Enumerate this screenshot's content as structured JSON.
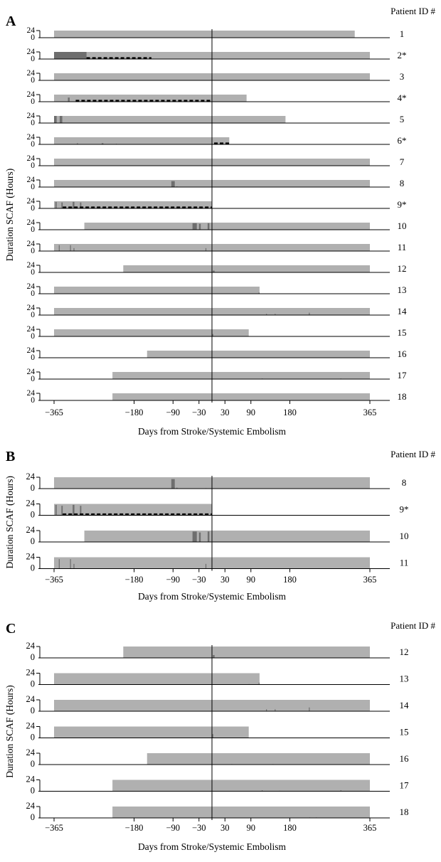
{
  "colors": {
    "monitoring": "#b0b0b0",
    "scaf": "#6e6e6e",
    "axis": "#000000",
    "dash": "#000000"
  },
  "chart_data": [
    {
      "panel_label": "A",
      "type": "bar",
      "header": "Patient ID #",
      "ylabel": "Duration SCAF (Hours)",
      "xlabel": "Days from Stroke/Systemic Embolism",
      "x_ticks": [
        "-365",
        "-180",
        "-90",
        "-30",
        "30",
        "90",
        "180",
        "365"
      ],
      "x_tick_values": [
        -365,
        -180,
        -90,
        -30,
        30,
        90,
        180,
        365
      ],
      "y_ticks": [
        "24",
        "0"
      ],
      "y_range": [
        0,
        24
      ],
      "x_range": [
        -365,
        365
      ],
      "event_line_x": 0,
      "rows": [
        {
          "id": "1",
          "monitor": [
            -365,
            330
          ],
          "events": [
            [
              -240,
              -238,
              1
            ],
            [
              -215,
              -213,
              1
            ],
            [
              -205,
              -203,
              1
            ],
            [
              -195,
              -193,
              1
            ],
            [
              -175,
              -173,
              1
            ],
            [
              -165,
              -163,
              1
            ]
          ],
          "dashed": null
        },
        {
          "id": "2*",
          "monitor": [
            -365,
            365
          ],
          "events": [
            [
              -365,
              -290,
              24
            ]
          ],
          "dashed": [
            -290,
            -140
          ]
        },
        {
          "id": "3",
          "monitor": [
            -365,
            365
          ],
          "events": [
            [
              -358,
              -356,
              1
            ],
            [
              -352,
              -350,
              1
            ],
            [
              -345,
              -343,
              1
            ]
          ],
          "dashed": null
        },
        {
          "id": "4*",
          "monitor": [
            -365,
            80
          ],
          "events": [
            [
              -333,
              -329,
              14
            ]
          ],
          "dashed": [
            -315,
            -2
          ]
        },
        {
          "id": "5",
          "monitor": [
            -365,
            170
          ],
          "events": [
            [
              -365,
              -359,
              24
            ],
            [
              -352,
              -346,
              24
            ]
          ],
          "dashed": null
        },
        {
          "id": "6*",
          "monitor": [
            -365,
            40
          ],
          "events": [
            [
              -312,
              -310,
              4
            ],
            [
              -255,
              -251,
              4
            ],
            [
              -222,
              -220,
              2
            ]
          ],
          "dashed": [
            5,
            40
          ]
        },
        {
          "id": "7",
          "monitor": [
            -365,
            365
          ],
          "events": [
            [
              -318,
              -316,
              1
            ],
            [
              -225,
              -223,
              1
            ],
            [
              -198,
              -196,
              1
            ],
            [
              -180,
              -178,
              1
            ],
            [
              -175,
              -173,
              1
            ]
          ],
          "dashed": null
        },
        {
          "id": "8",
          "monitor": [
            -365,
            365
          ],
          "events": [
            [
              -94,
              -86,
              20
            ],
            [
              -82,
              -80,
              2
            ],
            [
              -15,
              -13,
              1
            ]
          ],
          "dashed": null
        },
        {
          "id": "9*",
          "monitor": [
            -365,
            0
          ],
          "events": [
            [
              -362,
              -359,
              22
            ],
            [
              -348,
              -345,
              20
            ],
            [
              -322,
              -318,
              22
            ],
            [
              -305,
              -302,
              20
            ]
          ],
          "dashed": [
            -345,
            0
          ]
        },
        {
          "id": "10",
          "monitor": [
            -295,
            365
          ],
          "events": [
            [
              -45,
              -35,
              22
            ],
            [
              -30,
              -26,
              20
            ],
            [
              -10,
              -6,
              22
            ]
          ],
          "dashed": null
        },
        {
          "id": "11",
          "monitor": [
            -365,
            365
          ],
          "events": [
            [
              -354,
              -352,
              20
            ],
            [
              -328,
              -326,
              20
            ],
            [
              -320,
              -318,
              10
            ],
            [
              -15,
              -13,
              10
            ]
          ],
          "dashed": null
        },
        {
          "id": "12",
          "monitor": [
            -205,
            365
          ],
          "events": [
            [
              2,
              6,
              6
            ]
          ],
          "dashed": null
        },
        {
          "id": "13",
          "monitor": [
            -365,
            110
          ],
          "events": [
            [
              108,
              110,
              4
            ],
            [
              85,
              87,
              1
            ]
          ],
          "dashed": null
        },
        {
          "id": "14",
          "monitor": [
            -365,
            365
          ],
          "events": [
            [
              125,
              127,
              4
            ],
            [
              145,
              147,
              4
            ],
            [
              224,
              226,
              8
            ]
          ],
          "dashed": null
        },
        {
          "id": "15",
          "monitor": [
            -365,
            85
          ],
          "events": [
            [
              1,
              3,
              8
            ]
          ],
          "dashed": null
        },
        {
          "id": "16",
          "monitor": [
            -150,
            365
          ],
          "events": [
            [
              45,
              47,
              1
            ],
            [
              140,
              142,
              1
            ]
          ],
          "dashed": null
        },
        {
          "id": "17",
          "monitor": [
            -230,
            365
          ],
          "events": [
            [
              115,
              117,
              2
            ],
            [
              155,
              157,
              1
            ],
            [
              297,
              299,
              2
            ]
          ],
          "dashed": null
        },
        {
          "id": "18",
          "monitor": [
            -230,
            365
          ],
          "events": [
            [
              225,
              227,
              1
            ],
            [
              240,
              242,
              1
            ]
          ],
          "dashed": null
        }
      ]
    },
    {
      "panel_label": "B",
      "type": "bar",
      "header": "Patient ID #",
      "ylabel": "Duration SCAF (Hours)",
      "xlabel": "Days from Stroke/Systemic Embolism",
      "x_ticks": [
        "-365",
        "-180",
        "-90",
        "-30",
        "30",
        "90",
        "180",
        "365"
      ],
      "x_tick_values": [
        -365,
        -180,
        -90,
        -30,
        30,
        90,
        180,
        365
      ],
      "y_ticks": [
        "24",
        "0"
      ],
      "y_range": [
        0,
        24
      ],
      "x_range": [
        -365,
        365
      ],
      "event_line_x": 0,
      "rows": [
        {
          "id": "8",
          "monitor": [
            -365,
            365
          ],
          "events": [
            [
              -94,
              -86,
              20
            ],
            [
              -82,
              -80,
              2
            ],
            [
              -15,
              -13,
              1
            ]
          ],
          "dashed": null
        },
        {
          "id": "9*",
          "monitor": [
            -365,
            0
          ],
          "events": [
            [
              -362,
              -359,
              22
            ],
            [
              -348,
              -345,
              20
            ],
            [
              -322,
              -318,
              22
            ],
            [
              -305,
              -302,
              20
            ]
          ],
          "dashed": [
            -345,
            0
          ]
        },
        {
          "id": "10",
          "monitor": [
            -295,
            365
          ],
          "events": [
            [
              -45,
              -35,
              22
            ],
            [
              -30,
              -26,
              20
            ],
            [
              -10,
              -6,
              22
            ]
          ],
          "dashed": null
        },
        {
          "id": "11",
          "monitor": [
            -365,
            365
          ],
          "events": [
            [
              -354,
              -352,
              20
            ],
            [
              -328,
              -326,
              20
            ],
            [
              -320,
              -318,
              10
            ],
            [
              -15,
              -13,
              10
            ]
          ],
          "dashed": null
        }
      ]
    },
    {
      "panel_label": "C",
      "type": "bar",
      "header": "Patient ID #",
      "ylabel": "Duration SCAF (Hours)",
      "xlabel": "Days from Stroke/Systemic Embolism",
      "x_ticks": [
        "-365",
        "-180",
        "-90",
        "-30",
        "30",
        "90",
        "180",
        "365"
      ],
      "x_tick_values": [
        -365,
        -180,
        -90,
        -30,
        30,
        90,
        180,
        365
      ],
      "y_ticks": [
        "24",
        "0"
      ],
      "y_range": [
        0,
        24
      ],
      "x_range": [
        -365,
        365
      ],
      "event_line_x": 0,
      "rows": [
        {
          "id": "12",
          "monitor": [
            -205,
            365
          ],
          "events": [
            [
              2,
              6,
              6
            ]
          ],
          "dashed": null
        },
        {
          "id": "13",
          "monitor": [
            -365,
            110
          ],
          "events": [
            [
              108,
              110,
              4
            ],
            [
              85,
              87,
              1
            ]
          ],
          "dashed": null
        },
        {
          "id": "14",
          "monitor": [
            -365,
            365
          ],
          "events": [
            [
              125,
              127,
              4
            ],
            [
              145,
              147,
              4
            ],
            [
              224,
              226,
              8
            ]
          ],
          "dashed": null
        },
        {
          "id": "15",
          "monitor": [
            -365,
            85
          ],
          "events": [
            [
              1,
              3,
              8
            ]
          ],
          "dashed": null
        },
        {
          "id": "16",
          "monitor": [
            -150,
            365
          ],
          "events": [
            [
              45,
              47,
              1
            ],
            [
              140,
              142,
              1
            ]
          ],
          "dashed": null
        },
        {
          "id": "17",
          "monitor": [
            -230,
            365
          ],
          "events": [
            [
              115,
              117,
              2
            ],
            [
              155,
              157,
              1
            ],
            [
              297,
              299,
              2
            ]
          ],
          "dashed": null
        },
        {
          "id": "18",
          "monitor": [
            -230,
            365
          ],
          "events": [
            [
              225,
              227,
              1
            ],
            [
              240,
              242,
              1
            ]
          ],
          "dashed": null
        }
      ]
    }
  ]
}
